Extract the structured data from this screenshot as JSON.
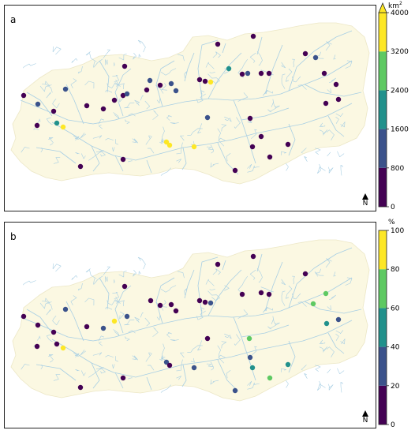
{
  "panels": [
    {
      "id": "a",
      "label": "a",
      "north_label": "N",
      "colorbar": {
        "unit": "km",
        "unit_superscript": "2",
        "ticks": [
          "0",
          "800",
          "1600",
          "2400",
          "3200",
          "4000"
        ],
        "extend_max": true,
        "colors": [
          "#440154",
          "#3b528b",
          "#21918c",
          "#5ec962",
          "#fde725"
        ]
      },
      "stations": [
        [
          29,
          120,
          0
        ],
        [
          47,
          131,
          1
        ],
        [
          46,
          158,
          0
        ],
        [
          67,
          140,
          0
        ],
        [
          71,
          155,
          2
        ],
        [
          79,
          160,
          4
        ],
        [
          82,
          112,
          1
        ],
        [
          101,
          210,
          0
        ],
        [
          109,
          133,
          0
        ],
        [
          130,
          137,
          0
        ],
        [
          144,
          126,
          0
        ],
        [
          155,
          120,
          0
        ],
        [
          155,
          201,
          0
        ],
        [
          157,
          83,
          0
        ],
        [
          160,
          118,
          1
        ],
        [
          185,
          113,
          0
        ],
        [
          189,
          101,
          1
        ],
        [
          202,
          107,
          0
        ],
        [
          210,
          179,
          4
        ],
        [
          214,
          183,
          4
        ],
        [
          216,
          105,
          1
        ],
        [
          222,
          114,
          1
        ],
        [
          245,
          185,
          4
        ],
        [
          252,
          100,
          0
        ],
        [
          259,
          102,
          0
        ],
        [
          262,
          148,
          1
        ],
        [
          266,
          103,
          4
        ],
        [
          275,
          55,
          0
        ],
        [
          289,
          86,
          2
        ],
        [
          297,
          215,
          0
        ],
        [
          306,
          93,
          0
        ],
        [
          313,
          92,
          1
        ],
        [
          316,
          149,
          0
        ],
        [
          319,
          185,
          0
        ],
        [
          320,
          45,
          0
        ],
        [
          330,
          92,
          0
        ],
        [
          330,
          172,
          0
        ],
        [
          340,
          92,
          0
        ],
        [
          341,
          198,
          0
        ],
        [
          364,
          182,
          0
        ],
        [
          386,
          67,
          0
        ],
        [
          399,
          72,
          1
        ],
        [
          410,
          92,
          0
        ],
        [
          412,
          130,
          0
        ],
        [
          425,
          106,
          0
        ],
        [
          428,
          125,
          0
        ]
      ]
    },
    {
      "id": "b",
      "label": "b",
      "north_label": "N",
      "colorbar": {
        "unit": "%",
        "unit_superscript": "",
        "ticks": [
          "0",
          "20",
          "40",
          "60",
          "80",
          "100"
        ],
        "extend_max": false,
        "colors": [
          "#440154",
          "#3b528b",
          "#21918c",
          "#5ec962",
          "#fde725"
        ]
      },
      "stations": [
        [
          29,
          400,
          0
        ],
        [
          47,
          411,
          0
        ],
        [
          46,
          438,
          0
        ],
        [
          67,
          420,
          0
        ],
        [
          71,
          435,
          0
        ],
        [
          79,
          440,
          4
        ],
        [
          82,
          391,
          1
        ],
        [
          101,
          490,
          0
        ],
        [
          109,
          413,
          0
        ],
        [
          130,
          415,
          1
        ],
        [
          144,
          406,
          4
        ],
        [
          155,
          478,
          0
        ],
        [
          157,
          362,
          0
        ],
        [
          160,
          400,
          1
        ],
        [
          190,
          380,
          0
        ],
        [
          202,
          386,
          0
        ],
        [
          210,
          458,
          1
        ],
        [
          214,
          462,
          0
        ],
        [
          216,
          385,
          0
        ],
        [
          222,
          393,
          0
        ],
        [
          245,
          465,
          1
        ],
        [
          252,
          380,
          0
        ],
        [
          259,
          382,
          0
        ],
        [
          262,
          428,
          0
        ],
        [
          266,
          383,
          1
        ],
        [
          275,
          334,
          0
        ],
        [
          297,
          494,
          1
        ],
        [
          306,
          372,
          0
        ],
        [
          315,
          428,
          3
        ],
        [
          316,
          452,
          1
        ],
        [
          319,
          465,
          2
        ],
        [
          320,
          324,
          0
        ],
        [
          330,
          370,
          0
        ],
        [
          340,
          372,
          0
        ],
        [
          341,
          478,
          3
        ],
        [
          364,
          461,
          2
        ],
        [
          386,
          346,
          0
        ],
        [
          396,
          384,
          3
        ],
        [
          412,
          371,
          3
        ],
        [
          413,
          409,
          2
        ],
        [
          428,
          404,
          1
        ]
      ]
    }
  ]
}
